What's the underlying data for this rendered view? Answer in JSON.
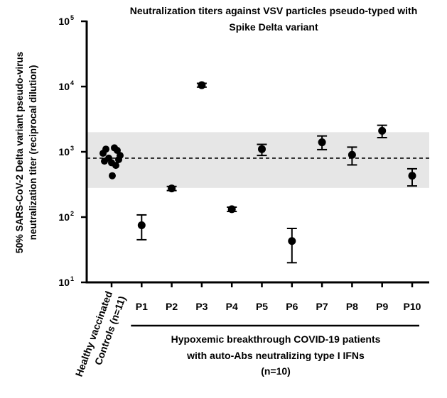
{
  "chart_data": {
    "type": "scatter",
    "title_lines": [
      "Neutralization titers against VSV particles pseudo-typed  with",
      "Spike Delta variant"
    ],
    "ylabel_lines": [
      "50% SARS-CoV-2 Delta variant pseudo-virus",
      "neutralization titer (reciprocal dilution)"
    ],
    "yscale": "log",
    "ylim": [
      10,
      100000
    ],
    "yticks": [
      {
        "value": 10,
        "base": "10",
        "exp": "1"
      },
      {
        "value": 100,
        "base": "10",
        "exp": "2"
      },
      {
        "value": 1000,
        "base": "10",
        "exp": "3"
      },
      {
        "value": 10000,
        "base": "10",
        "exp": "4"
      },
      {
        "value": 100000,
        "base": "10",
        "exp": "5"
      }
    ],
    "categories": [
      "Healthy vaccinated Controls (n=11)",
      "P1",
      "P2",
      "P3",
      "P4",
      "P5",
      "P6",
      "P7",
      "P8",
      "P9",
      "P10"
    ],
    "control_label_lines": [
      "Healthy vaccinated",
      "Controls (n=11)"
    ],
    "controls": [
      1150,
      1100,
      1050,
      950,
      880,
      800,
      760,
      720,
      680,
      620,
      430
    ],
    "patients": [
      {
        "label": "P1",
        "mean": 75,
        "low": 45,
        "high": 108
      },
      {
        "label": "P2",
        "mean": 275,
        "low": 255,
        "high": 295
      },
      {
        "label": "P3",
        "mean": 10500,
        "low": 9800,
        "high": 11200
      },
      {
        "label": "P4",
        "mean": 132,
        "low": 122,
        "high": 142
      },
      {
        "label": "P5",
        "mean": 1100,
        "low": 880,
        "high": 1300
      },
      {
        "label": "P6",
        "mean": 43,
        "low": 20,
        "high": 67
      },
      {
        "label": "P7",
        "mean": 1400,
        "low": 1080,
        "high": 1750
      },
      {
        "label": "P8",
        "mean": 900,
        "low": 630,
        "high": 1180
      },
      {
        "label": "P9",
        "mean": 2100,
        "low": 1650,
        "high": 2550
      },
      {
        "label": "P10",
        "mean": 430,
        "low": 300,
        "high": 550
      }
    ],
    "reference_line": 800,
    "reference_band": [
      280,
      2000
    ],
    "group_label_lines": [
      "Hypoxemic breakthrough COVID-19 patients",
      "with auto-Abs neutralizing type I IFNs",
      "(n=10)"
    ],
    "colors": {
      "points": "#000000",
      "band": "#e6e6e6"
    },
    "grid": false,
    "legend": "none"
  }
}
